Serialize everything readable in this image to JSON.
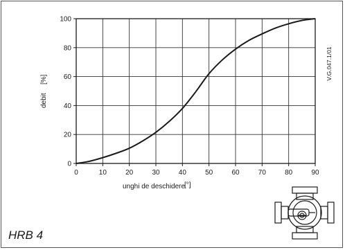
{
  "model_label": "HRB 4",
  "code_label": "V.G.047.1/01",
  "chart_data": {
    "type": "line",
    "title": "",
    "xlabel": "unghi de deschidere",
    "xunit": "[°]",
    "ylabel": "debit",
    "yunit": "[%]",
    "xlim": [
      0,
      90
    ],
    "ylim": [
      0,
      100
    ],
    "xticks": [
      0,
      10,
      20,
      30,
      40,
      50,
      60,
      70,
      80,
      90
    ],
    "yticks": [
      0,
      20,
      40,
      60,
      80,
      100
    ],
    "grid": true,
    "series": [
      {
        "color": "#1a1a1a",
        "x": [
          0,
          5,
          10,
          15,
          20,
          25,
          30,
          35,
          40,
          45,
          50,
          55,
          60,
          65,
          70,
          75,
          80,
          85,
          90
        ],
        "y": [
          0,
          1.5,
          4,
          7,
          10.5,
          15.5,
          21.5,
          29,
          38,
          49.5,
          62,
          71.5,
          79,
          85,
          89.5,
          93.5,
          96.5,
          98.8,
          100
        ]
      }
    ]
  }
}
